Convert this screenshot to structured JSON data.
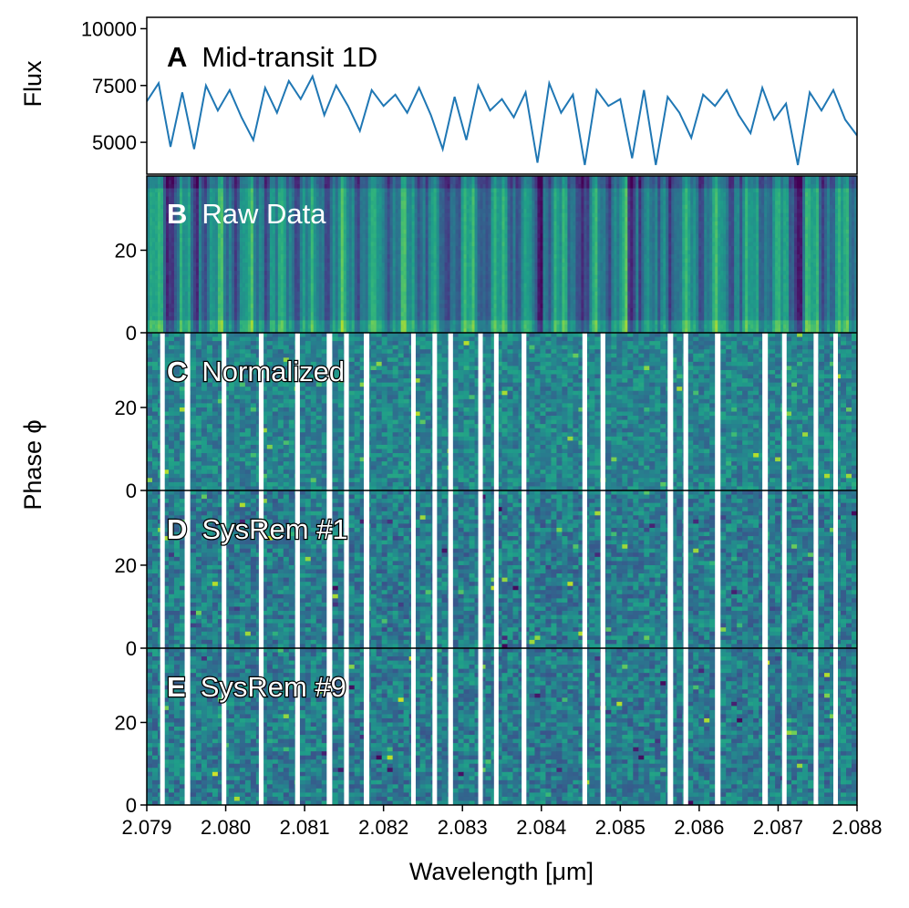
{
  "chart_data": {
    "type": "multi-panel",
    "x_axis": {
      "label": "Wavelength [μm]",
      "range": [
        2.079,
        2.088
      ],
      "ticks": [
        2.079,
        2.08,
        2.081,
        2.082,
        2.083,
        2.084,
        2.085,
        2.086,
        2.087,
        2.088
      ],
      "tick_labels": [
        "2.079",
        "2.080",
        "2.081",
        "2.082",
        "2.083",
        "2.084",
        "2.085",
        "2.086",
        "2.087",
        "2.088"
      ]
    },
    "shared_ylabel": "Phase ϕ",
    "colormap": "viridis",
    "panel_a": {
      "type": "line",
      "letter": "A",
      "title": "Mid-transit 1D",
      "ylabel": "Flux",
      "ylim": [
        3600,
        10500
      ],
      "yticks": [
        5000,
        7500,
        10000
      ],
      "ytick_labels": [
        "5000",
        "7500",
        "10000"
      ],
      "color": "#1f77b4",
      "x": [
        2.079,
        2.07915,
        2.0793,
        2.07945,
        2.0796,
        2.07975,
        2.0799,
        2.08005,
        2.0802,
        2.08035,
        2.0805,
        2.08065,
        2.0808,
        2.08095,
        2.0811,
        2.08125,
        2.0814,
        2.08155,
        2.0817,
        2.08185,
        2.082,
        2.08215,
        2.0823,
        2.08245,
        2.0826,
        2.08275,
        2.0829,
        2.08305,
        2.0832,
        2.08335,
        2.0835,
        2.08365,
        2.0838,
        2.08395,
        2.0841,
        2.08425,
        2.0844,
        2.08455,
        2.0847,
        2.08485,
        2.085,
        2.08515,
        2.0853,
        2.08545,
        2.0856,
        2.08575,
        2.0859,
        2.08605,
        2.0862,
        2.08635,
        2.0865,
        2.08665,
        2.0868,
        2.08695,
        2.0871,
        2.08725,
        2.0874,
        2.08755,
        2.0877,
        2.08785,
        2.088
      ],
      "y": [
        6800,
        7600,
        4800,
        7200,
        4700,
        7500,
        6400,
        7300,
        6100,
        5100,
        7400,
        6300,
        7700,
        6900,
        7900,
        6200,
        7500,
        6600,
        5500,
        7300,
        6600,
        7100,
        6300,
        7400,
        6200,
        4700,
        7000,
        5100,
        7500,
        6400,
        6900,
        6100,
        7200,
        4100,
        7600,
        6300,
        7100,
        4000,
        7300,
        6600,
        6900,
        4300,
        7300,
        4000,
        7000,
        6300,
        5200,
        7100,
        6600,
        7300,
        6200,
        5400,
        7400,
        6000,
        6700,
        4000,
        7200,
        6400,
        7300,
        6000,
        5300
      ]
    },
    "panels": [
      {
        "letter": "B",
        "title": "Raw Data",
        "kind": "raw",
        "yticks": [
          0,
          20
        ],
        "ytick_labels": [
          "0",
          "20"
        ],
        "yrange": [
          0,
          38
        ]
      },
      {
        "letter": "C",
        "title": "Normalized",
        "kind": "normalized",
        "yticks": [
          0,
          20
        ],
        "ytick_labels": [
          "0",
          "20"
        ],
        "yrange": [
          0,
          38
        ]
      },
      {
        "letter": "D",
        "title": "SysRem #1",
        "kind": "sysrem",
        "yticks": [
          0,
          20
        ],
        "ytick_labels": [
          "0",
          "20"
        ],
        "yrange": [
          0,
          38
        ]
      },
      {
        "letter": "E",
        "title": "SysRem #9",
        "kind": "sysrem",
        "yticks": [
          0,
          20
        ],
        "ytick_labels": [
          "0",
          "20"
        ],
        "yrange": [
          0,
          38
        ]
      }
    ],
    "masked_columns_um": [
      [
        2.07917,
        2.07922
      ],
      [
        2.07948,
        2.07955
      ],
      [
        2.07995,
        2.08
      ],
      [
        2.08042,
        2.08048
      ],
      [
        2.08088,
        2.08094
      ],
      [
        2.08128,
        2.08135
      ],
      [
        2.0815,
        2.08156
      ],
      [
        2.08175,
        2.08182
      ],
      [
        2.08235,
        2.0824
      ],
      [
        2.08262,
        2.08266
      ],
      [
        2.08282,
        2.08288
      ],
      [
        2.0832,
        2.08325
      ],
      [
        2.0834,
        2.08345
      ],
      [
        2.08375,
        2.08381
      ],
      [
        2.08452,
        2.08458
      ],
      [
        2.08475,
        2.08481
      ],
      [
        2.0856,
        2.08567
      ],
      [
        2.0858,
        2.08586
      ],
      [
        2.0862,
        2.08627
      ],
      [
        2.0868,
        2.08687
      ],
      [
        2.08705,
        2.0871
      ],
      [
        2.08745,
        2.0875
      ],
      [
        2.0877,
        2.08775
      ]
    ]
  }
}
